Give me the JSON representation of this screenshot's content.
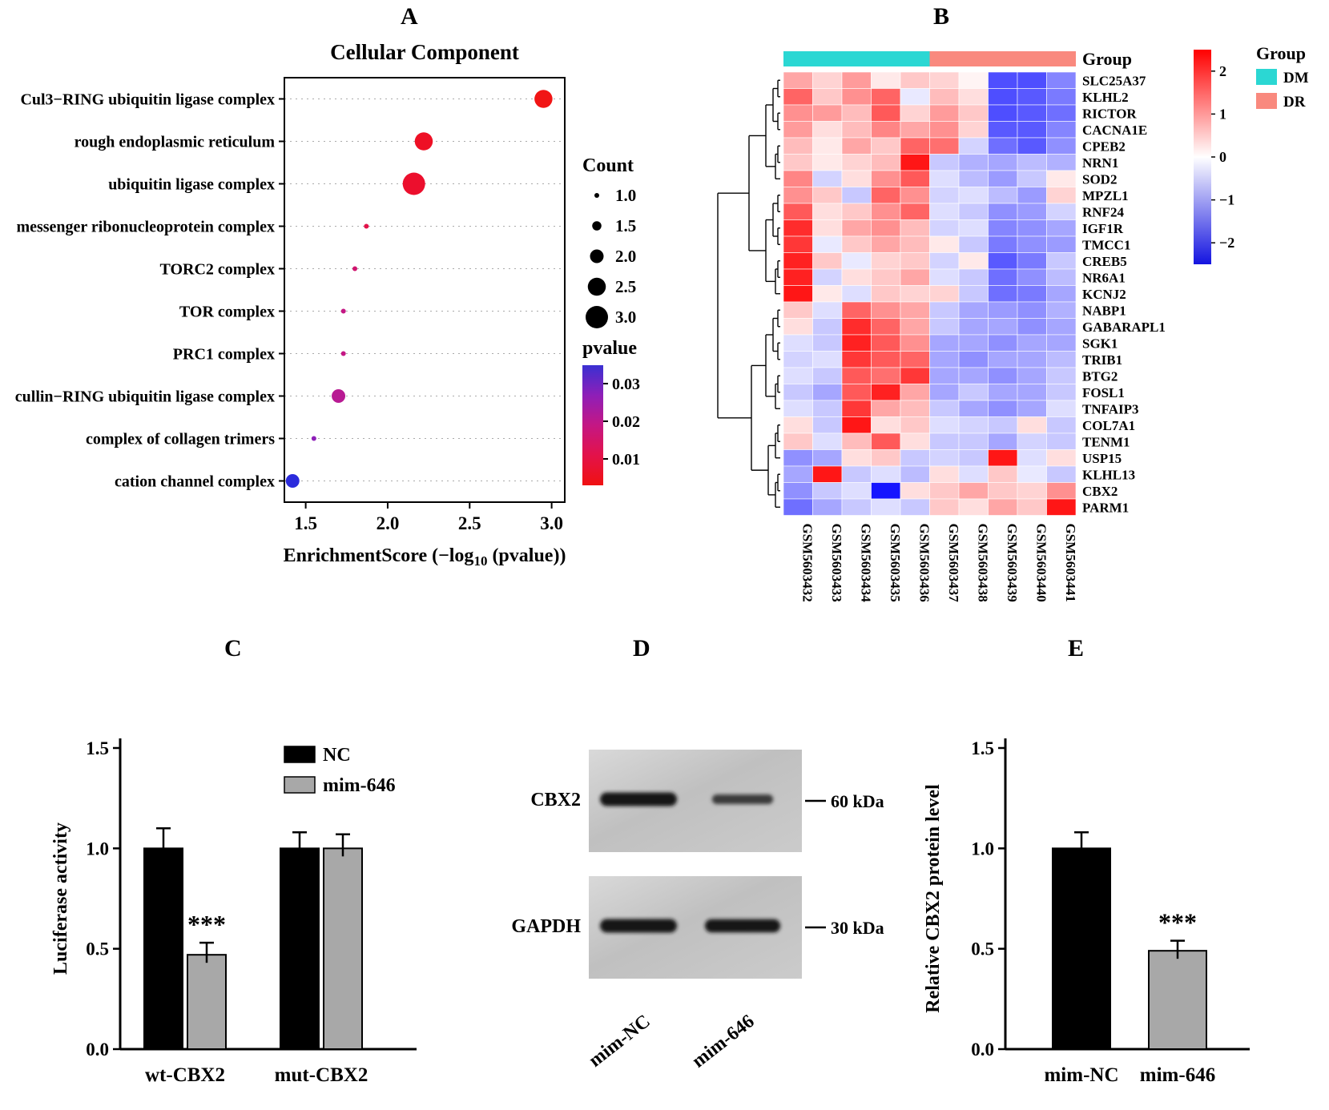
{
  "panel_letters": {
    "a": "A",
    "b": "B",
    "c": "C",
    "d": "D",
    "e": "E"
  },
  "chart_data": [
    {
      "type": "scatter",
      "panel": "A",
      "title": "Cellular Component",
      "xlabel_parts": [
        "EnrichmentScore (−log",
        "10",
        " (pvalue))"
      ],
      "x_ticks": [
        "1.5",
        "2.0",
        "2.5",
        "3.0"
      ],
      "x_tick_values": [
        1.5,
        2.0,
        2.5,
        3.0
      ],
      "xlim": [
        1.37,
        3.08
      ],
      "categories": [
        "Cul3−RING ubiquitin ligase complex",
        "rough endoplasmic reticulum",
        "ubiquitin ligase complex",
        "messenger ribonucleoprotein complex",
        "TORC2 complex",
        "TOR complex",
        "PRC1 complex",
        "cullin−RING ubiquitin ligase complex",
        "complex of collagen trimers",
        "cation channel complex"
      ],
      "points": [
        {
          "x": 2.95,
          "count": 2.5,
          "color": "#f11515"
        },
        {
          "x": 2.22,
          "count": 2.5,
          "color": "#ee1025"
        },
        {
          "x": 2.16,
          "count": 3.0,
          "color": "#ec0f2d"
        },
        {
          "x": 1.87,
          "count": 1.0,
          "color": "#e3124a"
        },
        {
          "x": 1.8,
          "count": 1.0,
          "color": "#d0156e"
        },
        {
          "x": 1.73,
          "count": 1.0,
          "color": "#c41784"
        },
        {
          "x": 1.73,
          "count": 1.0,
          "color": "#c41784"
        },
        {
          "x": 1.7,
          "count": 2.0,
          "color": "#b81a93"
        },
        {
          "x": 1.55,
          "count": 1.0,
          "color": "#8e1fb8"
        },
        {
          "x": 1.42,
          "count": 2.0,
          "color": "#2b2bdc"
        }
      ],
      "size_legend": {
        "title": "Count",
        "labels": [
          "1.0",
          "1.5",
          "2.0",
          "2.5",
          "3.0"
        ],
        "values": [
          1.0,
          1.5,
          2.0,
          2.5,
          3.0
        ]
      },
      "color_legend": {
        "title": "pvalue",
        "tick_labels": [
          "0.03",
          "0.02",
          "0.01"
        ],
        "gradient": [
          "#3a30d2",
          "#8e1fb8",
          "#c41784",
          "#e3124a",
          "#f01111"
        ]
      }
    },
    {
      "type": "heatmap",
      "panel": "B",
      "genes": [
        "SLC25A37",
        "KLHL2",
        "RICTOR",
        "CACNA1E",
        "CPEB2",
        "NRN1",
        "SOD2",
        "MPZL1",
        "RNF24",
        "IGF1R",
        "TMCC1",
        "CREB5",
        "NR6A1",
        "KCNJ2",
        "NABP1",
        "GABARAPL1",
        "SGK1",
        "TRIB1",
        "BTG2",
        "FOSL1",
        "TNFAIP3",
        "COL7A1",
        "TENM1",
        "USP15",
        "KLHL13",
        "CBX2",
        "PARM1"
      ],
      "samples": [
        "GSM5603432",
        "GSM5603433",
        "GSM5603434",
        "GSM5603435",
        "GSM5603436",
        "GSM5603437",
        "GSM5603438",
        "GSM5603439",
        "GSM5603440",
        "GSM5603441"
      ],
      "groups": {
        "title": "Group",
        "entries": [
          {
            "label": "DM",
            "color": "#2bd7d3",
            "n": 5
          },
          {
            "label": "DR",
            "color": "#f9897e",
            "n": 5
          }
        ]
      },
      "colorbar": {
        "ticks": [
          "2",
          "1",
          "0",
          "−1",
          "−2"
        ],
        "tick_values": [
          2,
          1,
          0,
          -1,
          -2
        ],
        "vmax": 2.5,
        "vmin": -2.5,
        "max_color": "#ff0000",
        "mid_color": "#ffffff",
        "min_color": "#1414e0"
      },
      "values": [
        [
          0.8,
          0.4,
          0.9,
          0.2,
          0.5,
          0.4,
          0.1,
          -1.6,
          -1.6,
          -1.1
        ],
        [
          1.4,
          0.5,
          1.0,
          1.4,
          -0.2,
          0.6,
          0.3,
          -1.6,
          -1.5,
          -1.2
        ],
        [
          1.0,
          0.9,
          0.6,
          1.5,
          0.4,
          0.9,
          0.5,
          -1.6,
          -1.5,
          -1.3
        ],
        [
          0.9,
          0.3,
          0.6,
          1.1,
          0.8,
          1.0,
          0.4,
          -1.5,
          -1.5,
          -1.1
        ],
        [
          0.6,
          0.2,
          0.8,
          0.5,
          1.4,
          1.3,
          -0.4,
          -1.3,
          -1.5,
          -1.0
        ],
        [
          0.5,
          0.2,
          0.4,
          0.6,
          2.1,
          -0.5,
          -0.7,
          -0.8,
          -0.6,
          -0.7
        ],
        [
          1.1,
          -0.4,
          0.3,
          1.0,
          1.5,
          -0.3,
          -0.6,
          -0.9,
          -0.5,
          0.2
        ],
        [
          1.0,
          0.5,
          -0.5,
          1.4,
          1.0,
          -0.4,
          -0.3,
          -0.6,
          -0.9,
          0.4
        ],
        [
          1.5,
          0.3,
          0.5,
          1.0,
          1.4,
          -0.3,
          -0.5,
          -1.0,
          -0.9,
          -0.4
        ],
        [
          1.9,
          0.3,
          0.8,
          1.0,
          0.6,
          -0.4,
          -0.3,
          -1.1,
          -1.0,
          -0.8
        ],
        [
          1.8,
          -0.2,
          0.5,
          0.8,
          0.6,
          0.2,
          -0.5,
          -1.2,
          -1.0,
          -0.9
        ],
        [
          2.0,
          0.5,
          -0.2,
          0.4,
          0.5,
          -0.4,
          0.2,
          -1.5,
          -1.2,
          -0.5
        ],
        [
          2.0,
          -0.4,
          0.3,
          0.5,
          0.8,
          -0.3,
          -0.5,
          -1.3,
          -1.0,
          -0.6
        ],
        [
          2.1,
          0.2,
          -0.3,
          0.5,
          0.4,
          0.4,
          -0.5,
          -1.3,
          -1.2,
          -0.8
        ],
        [
          0.5,
          -0.3,
          1.4,
          1.0,
          0.8,
          -0.5,
          -0.8,
          -0.9,
          -1.0,
          -0.7
        ],
        [
          0.3,
          -0.5,
          1.9,
          1.4,
          0.8,
          -0.5,
          -0.8,
          -0.8,
          -1.0,
          -0.8
        ],
        [
          -0.3,
          -0.5,
          2.0,
          1.5,
          1.0,
          -0.8,
          -0.8,
          -1.0,
          -0.8,
          -0.8
        ],
        [
          -0.4,
          -0.3,
          1.8,
          1.5,
          1.4,
          -0.8,
          -1.0,
          -0.8,
          -0.8,
          -0.6
        ],
        [
          -0.3,
          -0.5,
          1.5,
          1.3,
          1.8,
          -0.8,
          -0.8,
          -1.0,
          -0.8,
          -0.5
        ],
        [
          -0.5,
          -0.8,
          1.5,
          2.0,
          0.8,
          -0.8,
          -0.5,
          -0.8,
          -0.8,
          -0.5
        ],
        [
          -0.3,
          -0.5,
          1.8,
          0.8,
          0.6,
          -0.5,
          -0.8,
          -1.0,
          -0.8,
          -0.3
        ],
        [
          0.3,
          -0.5,
          2.1,
          0.3,
          0.5,
          -0.3,
          -0.4,
          -0.5,
          0.3,
          -0.5
        ],
        [
          0.5,
          -0.3,
          0.6,
          1.5,
          0.3,
          -0.5,
          -0.5,
          -0.8,
          -0.4,
          -0.5
        ],
        [
          -1.0,
          -0.8,
          0.3,
          0.5,
          -0.5,
          -0.4,
          -0.5,
          2.1,
          -0.3,
          0.3
        ],
        [
          -0.8,
          2.1,
          -0.5,
          -0.3,
          -0.6,
          0.3,
          -0.3,
          0.5,
          -0.2,
          -0.5
        ],
        [
          -1.0,
          -0.5,
          -0.3,
          -2.1,
          0.3,
          0.5,
          0.8,
          0.5,
          0.4,
          1.0
        ],
        [
          -1.3,
          -0.8,
          -0.5,
          -0.3,
          -0.5,
          0.5,
          0.3,
          0.8,
          0.5,
          2.1
        ]
      ]
    },
    {
      "type": "bar",
      "panel": "C",
      "ylabel": "Luciferase activity",
      "ylim": [
        0,
        1.5
      ],
      "y_ticks": [
        "0.0",
        "0.5",
        "1.0",
        "1.5"
      ],
      "y_tick_values": [
        0,
        0.5,
        1.0,
        1.5
      ],
      "categories": [
        "wt-CBX2",
        "mut-CBX2"
      ],
      "series": [
        {
          "name": "NC",
          "color": "#000000",
          "values": [
            1.0,
            1.0
          ],
          "errors": [
            0.1,
            0.08
          ]
        },
        {
          "name": "mim-646",
          "color": "#a8a8a8",
          "values": [
            0.47,
            1.0
          ],
          "errors": [
            0.06,
            0.07
          ]
        }
      ],
      "significance": [
        {
          "category": 0,
          "series": 1,
          "label": "***"
        }
      ]
    },
    {
      "type": "bar",
      "panel": "E",
      "ylabel": "Relative CBX2 protein level",
      "ylim": [
        0,
        1.5
      ],
      "y_ticks": [
        "0.0",
        "0.5",
        "1.0",
        "1.5"
      ],
      "y_tick_values": [
        0,
        0.5,
        1.0,
        1.5
      ],
      "categories": [
        "mim-NC",
        "mim-646"
      ],
      "series": [
        {
          "name": "",
          "colors": [
            "#000000",
            "#a8a8a8"
          ],
          "values": [
            1.0,
            0.49
          ],
          "errors": [
            0.08,
            0.05
          ]
        }
      ],
      "significance": [
        {
          "category": 1,
          "label": "***"
        }
      ]
    }
  ],
  "panelD": {
    "blots": [
      {
        "label": "CBX2",
        "marker": "60 kDa",
        "bands": [
          {
            "lane": "mim-NC",
            "intensity": 1.0
          },
          {
            "lane": "mim-646",
            "intensity": 0.45
          }
        ]
      },
      {
        "label": "GAPDH",
        "marker": "30 kDa",
        "bands": [
          {
            "lane": "mim-NC",
            "intensity": 1.0
          },
          {
            "lane": "mim-646",
            "intensity": 0.95
          }
        ]
      }
    ],
    "lane_labels": [
      "mim-NC",
      "mim-646"
    ]
  }
}
